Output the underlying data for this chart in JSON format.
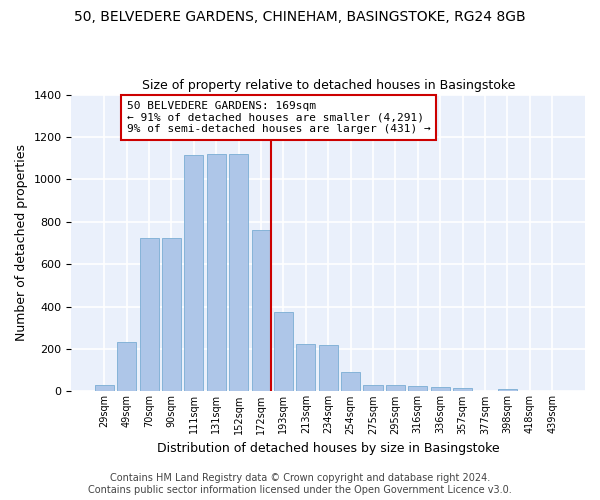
{
  "title1": "50, BELVEDERE GARDENS, CHINEHAM, BASINGSTOKE, RG24 8GB",
  "title2": "Size of property relative to detached houses in Basingstoke",
  "xlabel": "Distribution of detached houses by size in Basingstoke",
  "ylabel": "Number of detached properties",
  "categories": [
    "29sqm",
    "49sqm",
    "70sqm",
    "90sqm",
    "111sqm",
    "131sqm",
    "152sqm",
    "172sqm",
    "193sqm",
    "213sqm",
    "234sqm",
    "254sqm",
    "275sqm",
    "295sqm",
    "316sqm",
    "336sqm",
    "357sqm",
    "377sqm",
    "398sqm",
    "418sqm",
    "439sqm"
  ],
  "values": [
    30,
    235,
    725,
    725,
    1115,
    1120,
    1120,
    760,
    375,
    225,
    220,
    90,
    30,
    30,
    25,
    20,
    15,
    0,
    10,
    0,
    0
  ],
  "bar_color": "#aec6e8",
  "bar_edge_color": "#7aadd4",
  "vline_index": 7,
  "vline_color": "#cc0000",
  "annotation_line1": "50 BELVEDERE GARDENS: 169sqm",
  "annotation_line2": "← 91% of detached houses are smaller (4,291)",
  "annotation_line3": "9% of semi-detached houses are larger (431) →",
  "annotation_box_color": "#ffffff",
  "annotation_box_edge": "#cc0000",
  "ylim": [
    0,
    1400
  ],
  "yticks": [
    0,
    200,
    400,
    600,
    800,
    1000,
    1200,
    1400
  ],
  "bg_color": "#eaf0fb",
  "grid_color": "#ffffff",
  "footer1": "Contains HM Land Registry data © Crown copyright and database right 2024.",
  "footer2": "Contains public sector information licensed under the Open Government Licence v3.0.",
  "title1_fontsize": 10,
  "title2_fontsize": 9,
  "axis_label_fontsize": 9,
  "tick_fontsize": 8,
  "annotation_fontsize": 8,
  "footer_fontsize": 7
}
